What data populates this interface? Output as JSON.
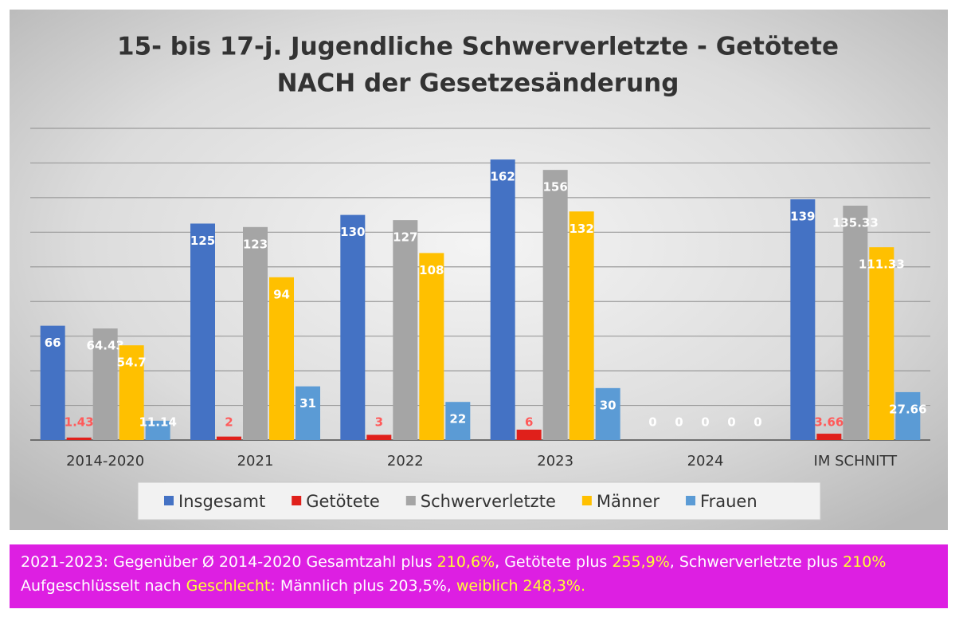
{
  "chart_data": {
    "type": "bar",
    "title": [
      "15- bis 17-j. Jugendliche Schwerverletzte - Getötete",
      "NACH der Gesetzesänderung"
    ],
    "categories": [
      "2014-2020",
      "2021",
      "2022",
      "2023",
      "2024",
      "IM SCHNITT"
    ],
    "series": [
      {
        "name": "Insgesamt",
        "color": "#4472c4",
        "values": [
          66,
          125,
          130,
          162,
          0,
          139
        ]
      },
      {
        "name": "Getötete",
        "color": "#e0201b",
        "values": [
          1.43,
          2,
          3,
          6,
          0,
          3.66
        ]
      },
      {
        "name": "Schwerverletzte",
        "color": "#a5a5a5",
        "values": [
          64.43,
          123,
          127,
          156,
          0,
          135.33
        ]
      },
      {
        "name": "Männer",
        "color": "#ffc000",
        "values": [
          54.7,
          94,
          108,
          132,
          0,
          111.33
        ]
      },
      {
        "name": "Frauen",
        "color": "#5b9bd5",
        "values": [
          11.14,
          31,
          22,
          30,
          0,
          27.66
        ]
      }
    ],
    "ylim": [
      0,
      180
    ],
    "yticks": [
      0,
      20,
      40,
      60,
      80,
      100,
      120,
      140,
      160,
      180
    ],
    "grid": true,
    "legend": "bottom"
  },
  "footer": {
    "lines": [
      {
        "segments": [
          {
            "text": "2021-2023: Gegenüber Ø 2014-2020 Gesamtzahl plus ",
            "color": "#ffffff"
          },
          {
            "text": "210,6%",
            "color": "#ffff33"
          },
          {
            "text": ", Getötete plus ",
            "color": "#ffffff"
          },
          {
            "text": "255,9%",
            "color": "#ffff33"
          },
          {
            "text": ", Schwerverletzte plus ",
            "color": "#ffffff"
          },
          {
            "text": "210%",
            "color": "#ffff33"
          }
        ]
      },
      {
        "segments": [
          {
            "text": "Aufgeschlüsselt nach ",
            "color": "#ffffff"
          },
          {
            "text": "Geschlecht",
            "color": "#ffff33"
          },
          {
            "text": ": Männlich plus 203,5%, ",
            "color": "#ffffff"
          },
          {
            "text": "weiblich 248,3%.",
            "color": "#ffff33"
          }
        ]
      }
    ]
  }
}
